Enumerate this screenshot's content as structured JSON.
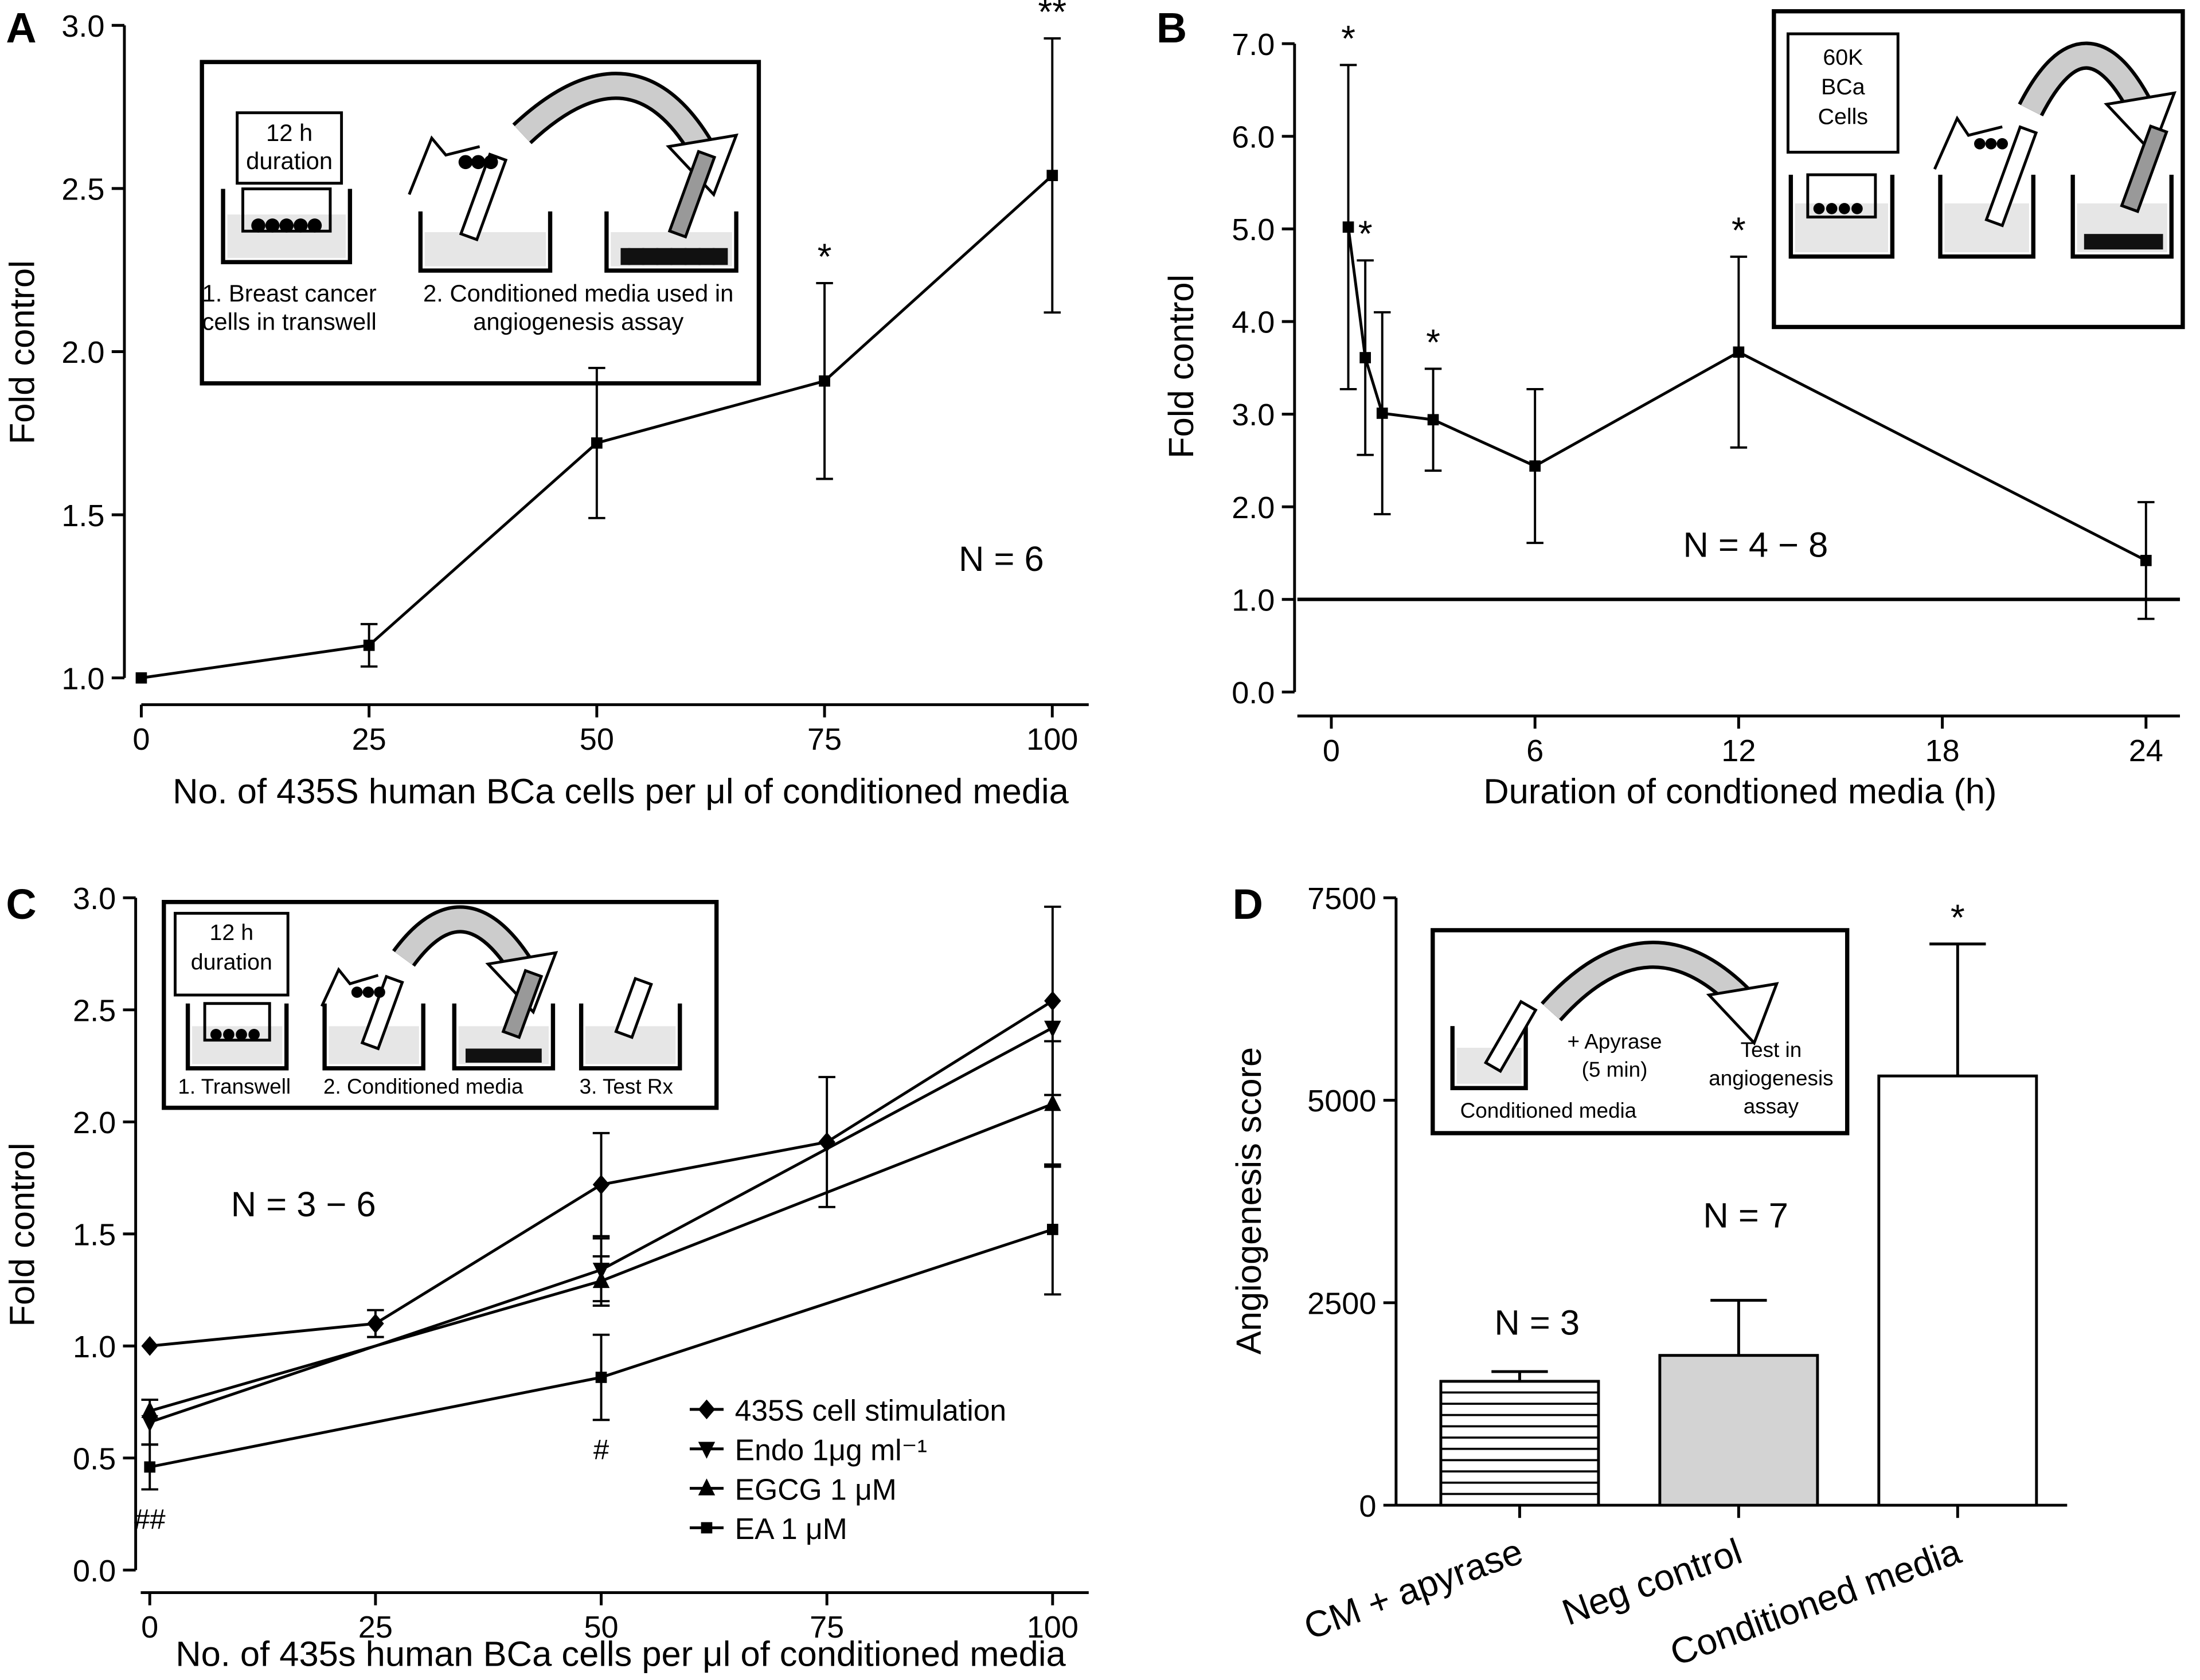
{
  "chart_data": [
    {
      "type": "line",
      "label": "A",
      "xlabel": "No. of 435S human BCa cells per μl of conditioned media",
      "ylabel": "Fold control",
      "x": [
        0,
        25,
        50,
        75,
        100
      ],
      "series": [
        {
          "color": "#000000",
          "marker": "square",
          "values": [
            1.0,
            1.1,
            1.72,
            1.91,
            2.54
          ],
          "errors": [
            null,
            0.065,
            0.23,
            0.3,
            0.42
          ],
          "point_labels": [
            null,
            null,
            null,
            "*",
            "**"
          ]
        }
      ],
      "xlim": [
        0,
        104
      ],
      "xticks": [
        0,
        25,
        50,
        75,
        100
      ],
      "ylim": [
        1,
        3
      ],
      "yticks": [
        {
          "value": 1,
          "label": "1.0"
        },
        1.5,
        {
          "value": 2,
          "label": "2.0"
        },
        2.5,
        {
          "value": 3,
          "label": "3.0"
        }
      ],
      "annotations": [
        "N = 6"
      ],
      "inset": [
        [
          "12 h",
          "duration"
        ],
        [
          "1. Breast cancer",
          "cells in transwell"
        ],
        [
          "2. Conditioned media used in",
          "angiogenesis assay"
        ]
      ]
    },
    {
      "type": "line",
      "label": "B",
      "xlabel": "Duration of condtioned media (h)",
      "ylabel": "Fold control",
      "x": [
        0.5,
        1,
        1.5,
        3,
        6,
        12,
        24
      ],
      "series": [
        {
          "color": "#000000",
          "marker": "square",
          "values": [
            5.02,
            3.61,
            3.01,
            2.94,
            2.44,
            3.67,
            1.42
          ],
          "errors": [
            1.75,
            1.05,
            1.09,
            0.55,
            0.83,
            1.03,
            0.63
          ],
          "point_labels": [
            "*",
            "*",
            null,
            "*",
            null,
            "*",
            null
          ]
        }
      ],
      "xlim": [
        -1,
        25
      ],
      "xticks": [
        0,
        6,
        12,
        18,
        24
      ],
      "ylim": [
        0,
        7
      ],
      "yticks": [
        {
          "value": 0,
          "label": "0.0"
        },
        {
          "value": 1,
          "label": "1.0"
        },
        {
          "value": 2,
          "label": "2.0"
        },
        {
          "value": 3,
          "label": "3.0"
        },
        {
          "value": 4,
          "label": "4.0"
        },
        {
          "value": 5,
          "label": "5.0"
        },
        {
          "value": 6,
          "label": "6.0"
        },
        {
          "value": 7,
          "label": "7.0"
        }
      ],
      "hline": 1,
      "annotations": [
        "N = 4 − 8"
      ],
      "inset": [
        [
          "60K",
          "BCa",
          "Cells"
        ]
      ]
    },
    {
      "type": "line",
      "label": "C",
      "xlabel": "No. of 435s human BCa cells per μl of conditioned media",
      "ylabel": "Fold control",
      "series": [
        {
          "name": "435S cell stimulation",
          "color": "#000000",
          "marker": "diamond",
          "x": [
            0,
            25,
            50,
            75,
            100
          ],
          "values": [
            1.0,
            1.1,
            1.72,
            1.91,
            2.54
          ],
          "errors": [
            null,
            0.06,
            0.23,
            0.29,
            0.42
          ]
        },
        {
          "name": "Endo 1μg ml⁻¹",
          "color": "#000000",
          "marker": "triangle-down",
          "x": [
            0,
            50,
            100
          ],
          "values": [
            0.66,
            1.34,
            2.42
          ],
          "errors": [
            0.1,
            0.14,
            null
          ]
        },
        {
          "name": "EGCG 1 μM",
          "color": "#000000",
          "marker": "triangle-up",
          "x": [
            0,
            50,
            100
          ],
          "values": [
            0.71,
            1.29,
            2.08
          ],
          "errors": [
            null,
            0.11,
            0.28
          ]
        },
        {
          "name": "EA 1 μM",
          "color": "#000000",
          "marker": "square",
          "x": [
            0,
            50,
            100
          ],
          "values": [
            0.46,
            0.86,
            1.52
          ],
          "errors": [
            0.1,
            0.19,
            0.29
          ],
          "point_labels": [
            "##",
            "#",
            null
          ],
          "point_label_side": "below"
        }
      ],
      "xlim": [
        -1,
        104
      ],
      "xticks": [
        0,
        25,
        50,
        75,
        100
      ],
      "ylim": [
        0,
        3
      ],
      "yticks": [
        {
          "value": 0,
          "label": "0.0"
        },
        0.5,
        {
          "value": 1,
          "label": "1.0"
        },
        1.5,
        {
          "value": 2,
          "label": "2.0"
        },
        2.5,
        {
          "value": 3,
          "label": "3.0"
        }
      ],
      "legend": "lower right",
      "annotations": [
        "N = 3 − 6"
      ],
      "inset": [
        [
          "12 h",
          "duration"
        ],
        [
          "1. Transwell"
        ],
        [
          "2. Conditioned media"
        ],
        [
          "3. Test Rx"
        ]
      ]
    },
    {
      "type": "bar",
      "label": "D",
      "ylabel": "Angiogenesis score",
      "categories": [
        "CM + apyrase",
        "Neg control",
        "Conditioned media"
      ],
      "values": [
        1530,
        1850,
        5300
      ],
      "errors": [
        120,
        680,
        1630
      ],
      "fills": [
        "hatch",
        "#d3d3d3",
        "#ffffff"
      ],
      "point_labels": [
        null,
        null,
        "*"
      ],
      "ylim": [
        0,
        7500
      ],
      "yticks": [
        0,
        2500,
        5000,
        7500
      ],
      "annotations": [
        "N =  3",
        "N = 7"
      ],
      "inset": [
        [
          "Conditioned media"
        ],
        [
          "+ Apyrase",
          "(5 min)"
        ],
        [
          "Test in",
          "angiogenesis",
          "assay"
        ]
      ]
    }
  ]
}
